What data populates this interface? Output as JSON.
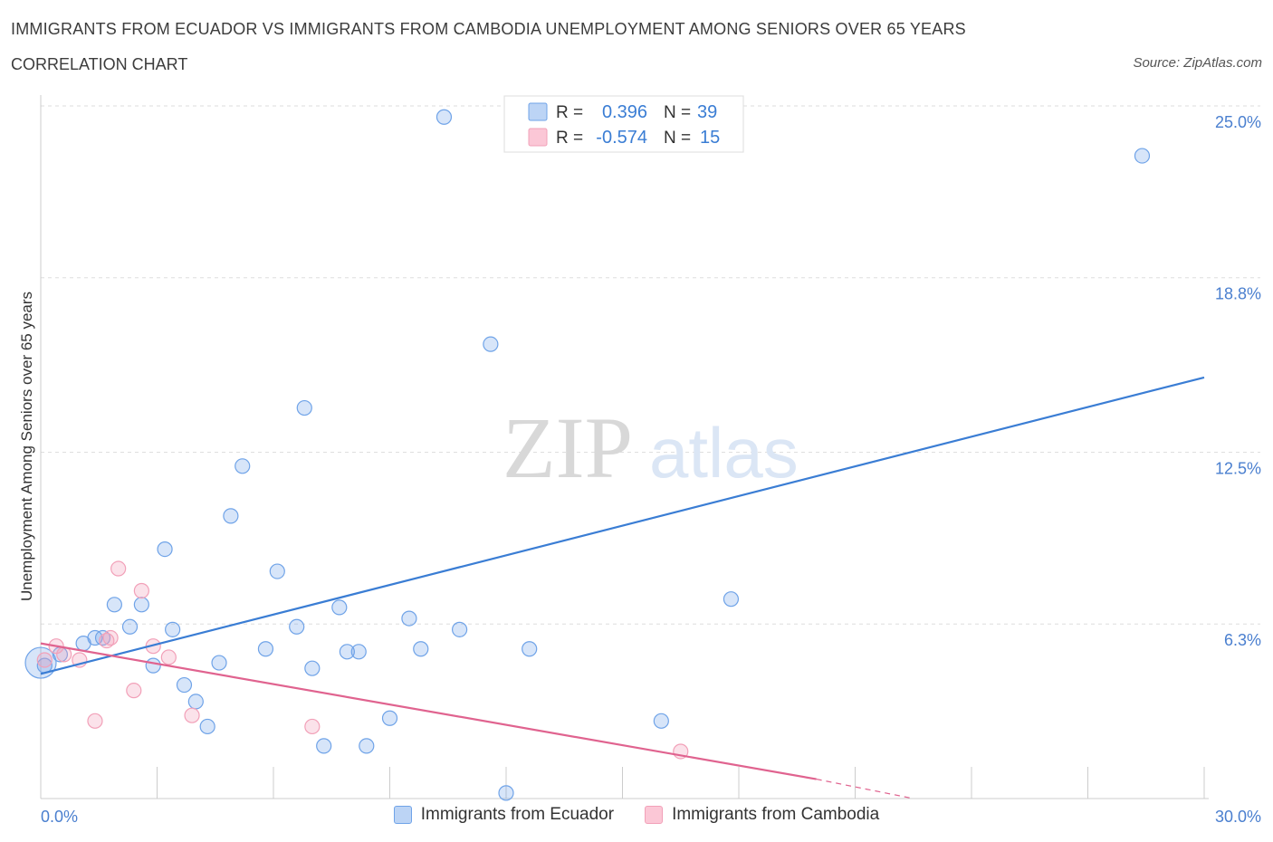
{
  "title": "IMMIGRANTS FROM ECUADOR VS IMMIGRANTS FROM CAMBODIA UNEMPLOYMENT AMONG SENIORS OVER 65 YEARS",
  "subtitle": "CORRELATION CHART",
  "source": "Source: ZipAtlas.com",
  "watermark": {
    "zip": "ZIP",
    "atlas": "atlas"
  },
  "colors": {
    "ecuador": "#6fa3e8",
    "ecuador_line": "#3a7dd4",
    "cambodia": "#f2a0b8",
    "cambodia_line": "#e0638f",
    "tick_label": "#4a7fcf"
  },
  "chart_data": {
    "type": "scatter",
    "ylabel": "Unemployment Among Seniors over 65 years",
    "xlim": [
      0,
      30
    ],
    "ylim": [
      0,
      25
    ],
    "x_tick_labels": [
      "0.0%",
      "30.0%"
    ],
    "y_ticks": [
      {
        "value": 6.3,
        "label": "6.3%"
      },
      {
        "value": 12.5,
        "label": "12.5%"
      },
      {
        "value": 18.8,
        "label": "18.8%"
      },
      {
        "value": 25.0,
        "label": "25.0%"
      }
    ],
    "grid": "horizontal dashed",
    "legend_stats": [
      {
        "r_label": "R =",
        "r": "0.396",
        "n_label": "N =",
        "n": "39"
      },
      {
        "r_label": "R =",
        "r": "-0.574",
        "n_label": "N =",
        "n": "15"
      }
    ],
    "series": [
      {
        "name": "Immigrants from Ecuador",
        "trend": {
          "x": [
            0,
            30
          ],
          "y": [
            4.5,
            15.2
          ]
        },
        "points": [
          [
            0.1,
            4.8
          ],
          [
            0.5,
            5.2
          ],
          [
            1.1,
            5.6
          ],
          [
            1.4,
            5.8
          ],
          [
            1.6,
            5.8
          ],
          [
            1.9,
            7.0
          ],
          [
            2.3,
            6.2
          ],
          [
            2.6,
            7.0
          ],
          [
            2.9,
            4.8
          ],
          [
            3.2,
            9.0
          ],
          [
            3.4,
            6.1
          ],
          [
            3.7,
            4.1
          ],
          [
            4.0,
            3.5
          ],
          [
            4.3,
            2.6
          ],
          [
            4.6,
            4.9
          ],
          [
            4.9,
            10.2
          ],
          [
            5.2,
            12.0
          ],
          [
            5.8,
            5.4
          ],
          [
            6.1,
            8.2
          ],
          [
            6.6,
            6.2
          ],
          [
            6.8,
            14.1
          ],
          [
            7.0,
            4.7
          ],
          [
            7.3,
            1.9
          ],
          [
            7.7,
            6.9
          ],
          [
            7.9,
            5.3
          ],
          [
            8.2,
            5.3
          ],
          [
            8.4,
            1.9
          ],
          [
            9.0,
            2.9
          ],
          [
            9.5,
            6.5
          ],
          [
            9.8,
            5.4
          ],
          [
            10.4,
            24.6
          ],
          [
            10.8,
            6.1
          ],
          [
            11.6,
            16.4
          ],
          [
            12.0,
            0.2
          ],
          [
            12.6,
            5.4
          ],
          [
            16.0,
            2.8
          ],
          [
            17.8,
            7.2
          ],
          [
            28.4,
            23.2
          ],
          [
            0.0,
            4.9
          ]
        ]
      },
      {
        "name": "Immigrants from Cambodia",
        "trend": {
          "x": [
            0,
            20
          ],
          "y": [
            5.6,
            0.7
          ]
        },
        "trend_dashed": {
          "x": [
            20,
            22.5
          ],
          "y": [
            0.7,
            0.0
          ]
        },
        "points": [
          [
            0.4,
            5.5
          ],
          [
            0.6,
            5.2
          ],
          [
            1.0,
            5.0
          ],
          [
            1.4,
            2.8
          ],
          [
            1.8,
            5.8
          ],
          [
            2.0,
            8.3
          ],
          [
            2.4,
            3.9
          ],
          [
            2.6,
            7.5
          ],
          [
            2.9,
            5.5
          ],
          [
            3.3,
            5.1
          ],
          [
            3.9,
            3.0
          ],
          [
            7.0,
            2.6
          ],
          [
            16.5,
            1.7
          ],
          [
            0.1,
            5.0
          ],
          [
            1.7,
            5.7
          ]
        ]
      }
    ]
  }
}
